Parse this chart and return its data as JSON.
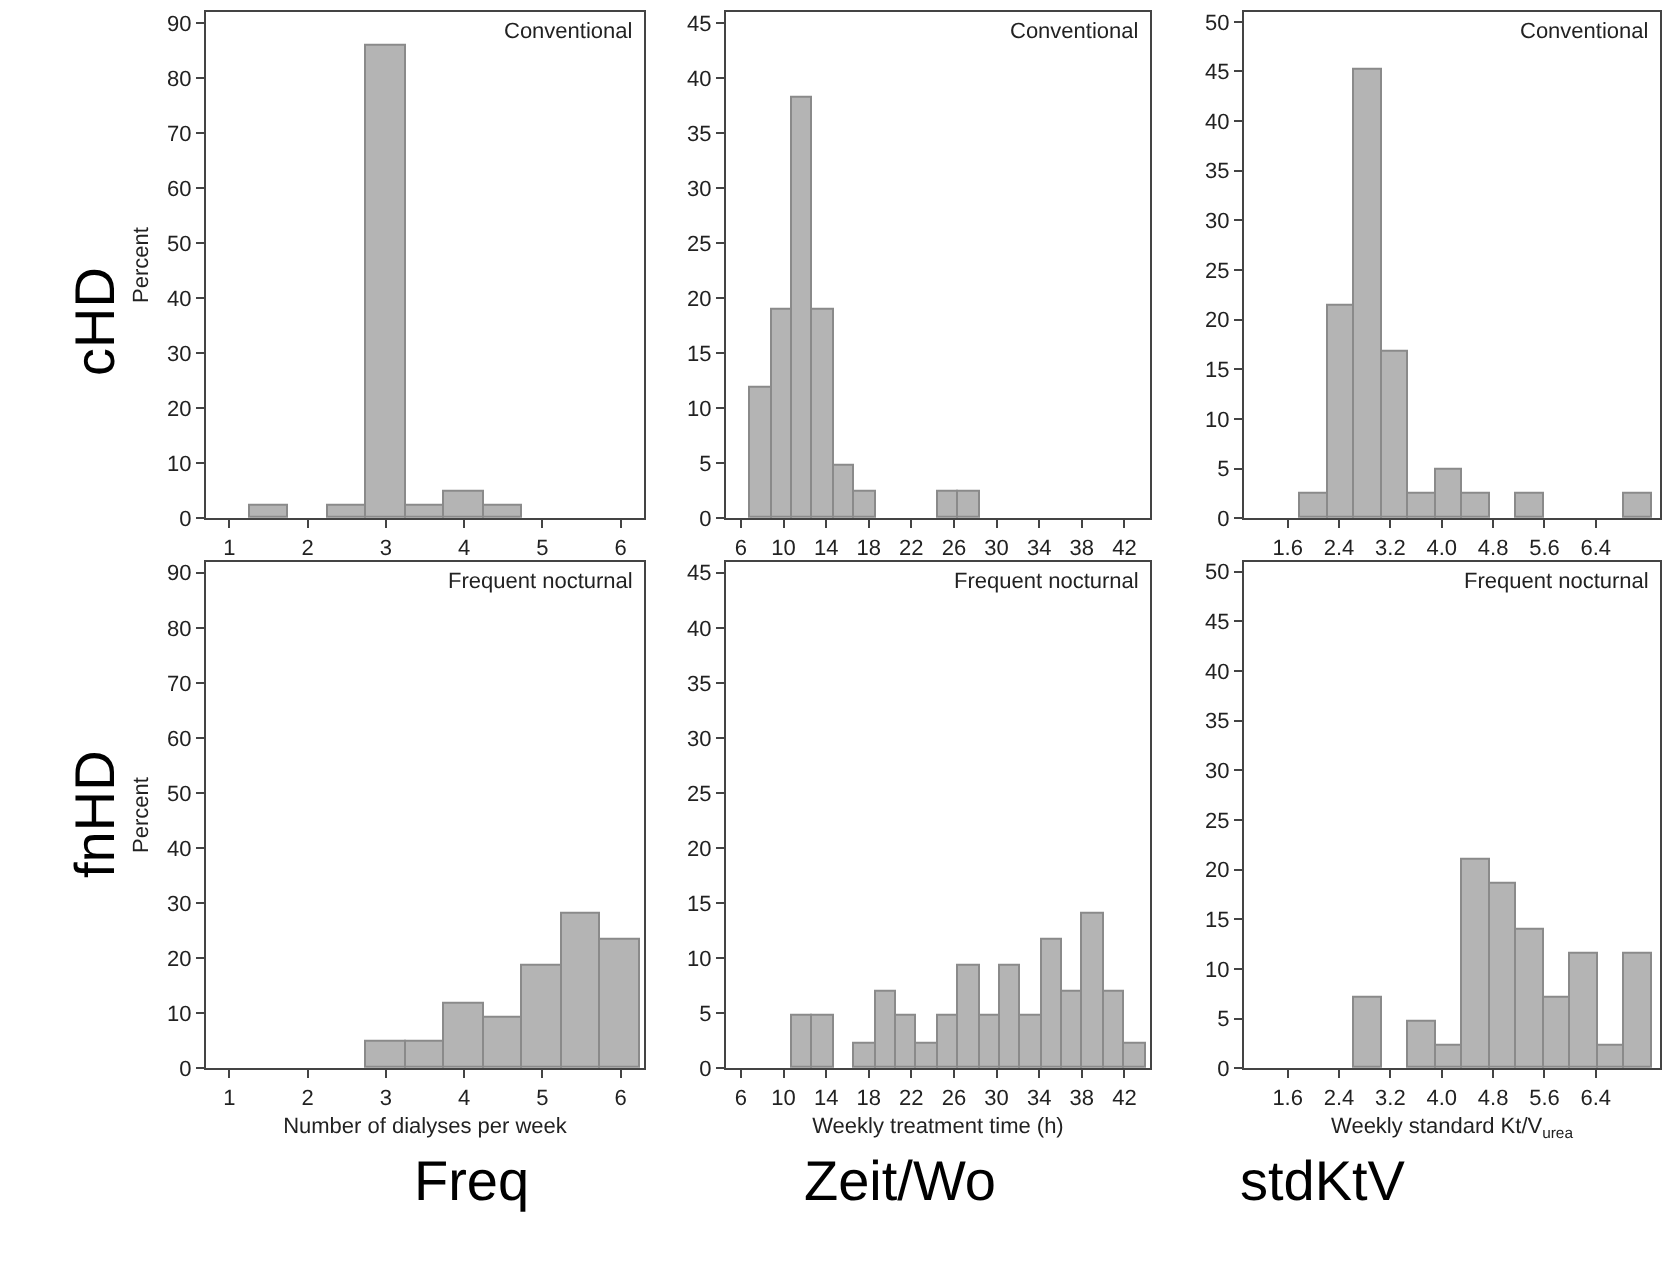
{
  "chart_data": [
    {
      "type": "histogram",
      "bins": [
        1.25,
        1.75,
        2.25,
        2.75,
        3.25,
        3.75,
        4.25,
        4.75
      ],
      "values": [
        2.4,
        0,
        2.4,
        85.7,
        2.4,
        4.8,
        2.4
      ],
      "color": "#b4b4b4",
      "xlim": [
        0.7,
        6.3
      ],
      "xticks": [
        1,
        2,
        3,
        4,
        5,
        6
      ],
      "ylim": [
        0,
        92
      ],
      "yticks": [
        0,
        10,
        20,
        30,
        40,
        50,
        60,
        70,
        80,
        90
      ],
      "ylabel": "Percent",
      "annotations": [
        "Conventional",
        "cHD"
      ]
    },
    {
      "type": "histogram",
      "bins": [
        6.9,
        8.85,
        10.8,
        12.75,
        14.7,
        16.65,
        18.6,
        20.55,
        22.5,
        24.45,
        26.4,
        28.35
      ],
      "values": [
        11.9,
        19.0,
        38.1,
        19.0,
        4.8,
        2.4,
        0,
        0,
        0,
        2.4,
        2.4
      ],
      "color": "#b4b4b4",
      "xlim": [
        4.6,
        44.4
      ],
      "xticks": [
        6,
        10,
        14,
        18,
        22,
        26,
        30,
        34,
        38,
        42
      ],
      "ylim": [
        0,
        46
      ],
      "yticks": [
        0,
        5,
        10,
        15,
        20,
        25,
        30,
        35,
        40,
        45
      ],
      "annotations": [
        "Conventional"
      ]
    },
    {
      "type": "histogram",
      "bins": [
        1.8,
        2.22,
        2.64,
        3.06,
        3.48,
        3.9,
        4.32,
        4.74,
        5.16,
        5.58,
        6.0,
        6.42,
        6.84,
        7.26
      ],
      "values": [
        2.4,
        21.4,
        45.2,
        16.7,
        2.4,
        4.8,
        2.4,
        0,
        2.4,
        0,
        0,
        0,
        2.4
      ],
      "color": "#b4b4b4",
      "xlim": [
        0.92,
        7.4
      ],
      "xticks": [
        1.6,
        2.4,
        3.2,
        {
          "value": 4,
          "label": "4.0"
        },
        4.8,
        5.6,
        6.4
      ],
      "ylim": [
        0,
        51
      ],
      "yticks": [
        0,
        5,
        10,
        15,
        20,
        25,
        30,
        35,
        40,
        45,
        50
      ],
      "annotations": [
        "Conventional"
      ]
    },
    {
      "type": "histogram",
      "bins": [
        2.75,
        3.25,
        3.75,
        4.25,
        4.75,
        5.25,
        5.75,
        6.25
      ],
      "values": [
        4.7,
        4.7,
        11.6,
        9.3,
        18.6,
        27.9,
        23.3
      ],
      "color": "#b4b4b4",
      "xlim": [
        0.7,
        6.3
      ],
      "xticks": [
        1,
        2,
        3,
        4,
        5,
        6
      ],
      "ylim": [
        0,
        92
      ],
      "yticks": [
        0,
        10,
        20,
        30,
        40,
        50,
        60,
        70,
        80,
        90
      ],
      "ylabel": "Percent",
      "xlabel": "Number of dialyses per week",
      "annotations": [
        "Frequent nocturnal",
        "fnHD",
        "Freq"
      ]
    },
    {
      "type": "histogram",
      "bins": [
        10.8,
        12.75,
        14.7,
        16.65,
        18.6,
        20.55,
        22.5,
        24.45,
        26.4,
        28.35,
        30.3,
        32.25,
        34.2,
        36.15,
        38.1,
        40.05,
        42.0,
        43.95
      ],
      "values": [
        4.7,
        4.7,
        0,
        2.3,
        7.0,
        4.7,
        2.3,
        4.7,
        9.3,
        4.7,
        9.3,
        4.7,
        11.6,
        7.0,
        14.0,
        7.0,
        2.3
      ],
      "color": "#b4b4b4",
      "xlim": [
        4.6,
        44.4
      ],
      "xticks": [
        6,
        10,
        14,
        18,
        22,
        26,
        30,
        34,
        38,
        42
      ],
      "ylim": [
        0,
        46
      ],
      "yticks": [
        0,
        5,
        10,
        15,
        20,
        25,
        30,
        35,
        40,
        45
      ],
      "xlabel": "Weekly treatment time (h)",
      "annotations": [
        "Frequent nocturnal",
        "Zeit/Wo"
      ]
    },
    {
      "type": "histogram",
      "bins": [
        2.64,
        3.06,
        3.48,
        3.9,
        4.32,
        4.74,
        5.16,
        5.58,
        6.0,
        6.42,
        6.84,
        7.26
      ],
      "values": [
        7.0,
        0,
        4.7,
        2.3,
        20.9,
        18.6,
        14.0,
        7.0,
        11.6,
        2.3,
        11.6
      ],
      "color": "#b4b4b4",
      "xlim": [
        0.92,
        7.4
      ],
      "xticks": [
        1.6,
        2.4,
        3.2,
        {
          "value": 4,
          "label": "4.0"
        },
        4.8,
        5.6,
        6.4
      ],
      "ylim": [
        0,
        51
      ],
      "yticks": [
        0,
        5,
        10,
        15,
        20,
        25,
        30,
        35,
        40,
        45,
        50
      ],
      "xlabel": "Weekly standard Kt/V$_{urea}$",
      "annotations": [
        "Frequent nocturnal",
        "stdKtV"
      ]
    }
  ]
}
